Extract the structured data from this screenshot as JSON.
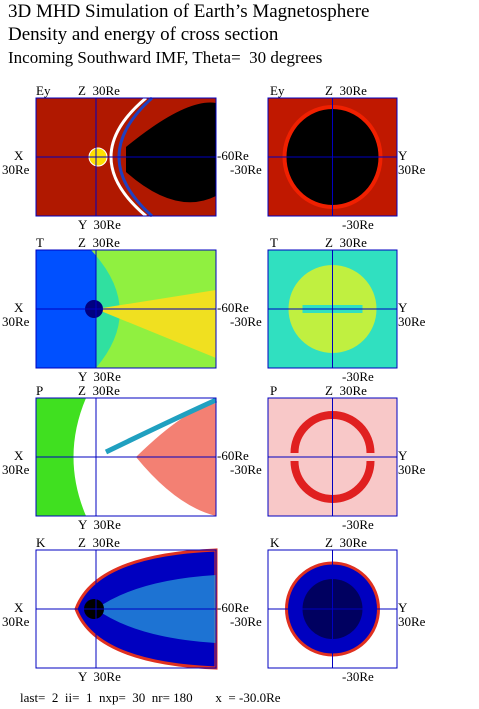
{
  "header": {
    "lines": [
      "3D MHD Simulation of Earth’s Magnetosphere",
      "Density and energy of cross section",
      "Incoming Southward IMF, Theta=  30 degrees"
    ]
  },
  "rows": [
    {
      "variable": "Ey",
      "left": {
        "top": "Z  30Re",
        "left_top": "X",
        "left_bottom": "30Re",
        "right_top": "-60Re",
        "right_bottom": "-30Re",
        "bottom": "Y  30Re"
      },
      "right": {
        "top": "Z  30Re",
        "right_top": "Y",
        "right_bottom": "30Re",
        "bottom": "-30Re"
      }
    },
    {
      "variable": "T",
      "left": {
        "top": "Z  30Re",
        "left_top": "X",
        "left_bottom": "30Re",
        "right_top": "-60Re",
        "right_bottom": "-30Re",
        "bottom": "Y  30Re"
      },
      "right": {
        "top": "Z  30Re",
        "right_top": "Y",
        "right_bottom": "30Re",
        "bottom": "-30Re"
      }
    },
    {
      "variable": "P",
      "left": {
        "top": "Z  30Re",
        "left_top": "X",
        "left_bottom": "30Re",
        "right_top": "-60Re",
        "right_bottom": "-30Re",
        "bottom": "Y  30Re"
      },
      "right": {
        "top": "Z  30Re",
        "right_top": "Y",
        "right_bottom": "30Re",
        "bottom": "-30Re"
      }
    },
    {
      "variable": "K",
      "left": {
        "top": "Z  30Re",
        "left_top": "X",
        "left_bottom": "30Re",
        "right_top": "-60Re",
        "right_bottom": "-30Re",
        "bottom": "Y  30Re"
      },
      "right": {
        "top": "Z  30Re",
        "right_top": "Y",
        "right_bottom": "30Re",
        "bottom": "-30Re"
      }
    }
  ],
  "footer": "last=  2  ii=  1  nxp=  30  nr= 180       x  = -30.0Re"
}
